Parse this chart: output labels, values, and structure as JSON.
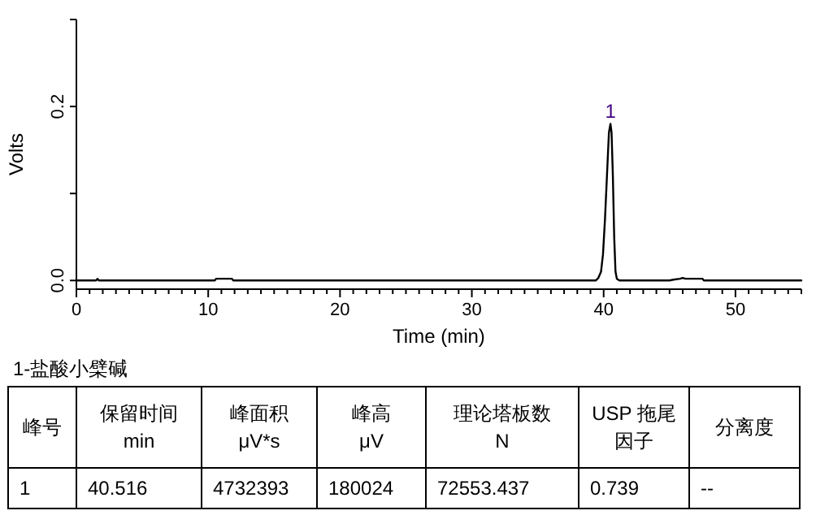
{
  "chart_data": {
    "type": "line",
    "xlabel": "Time (min)",
    "ylabel": "Volts",
    "xlim": [
      0,
      55
    ],
    "ylim": [
      -0.01,
      0.3
    ],
    "xticks": [
      0,
      {
        "value": 1,
        "label": null
      },
      {
        "value": 2,
        "label": null
      },
      {
        "value": 3,
        "label": null
      },
      {
        "value": 4,
        "label": null
      },
      {
        "value": 5,
        "label": null
      },
      {
        "value": 6,
        "label": null
      },
      {
        "value": 7,
        "label": null
      },
      {
        "value": 8,
        "label": null
      },
      {
        "value": 9,
        "label": null
      },
      10,
      {
        "value": 11,
        "label": null
      },
      {
        "value": 12,
        "label": null
      },
      {
        "value": 13,
        "label": null
      },
      {
        "value": 14,
        "label": null
      },
      {
        "value": 15,
        "label": null
      },
      {
        "value": 16,
        "label": null
      },
      {
        "value": 17,
        "label": null
      },
      {
        "value": 18,
        "label": null
      },
      {
        "value": 19,
        "label": null
      },
      20,
      {
        "value": 21,
        "label": null
      },
      {
        "value": 22,
        "label": null
      },
      {
        "value": 23,
        "label": null
      },
      {
        "value": 24,
        "label": null
      },
      {
        "value": 25,
        "label": null
      },
      {
        "value": 26,
        "label": null
      },
      {
        "value": 27,
        "label": null
      },
      {
        "value": 28,
        "label": null
      },
      {
        "value": 29,
        "label": null
      },
      30,
      {
        "value": 31,
        "label": null
      },
      {
        "value": 32,
        "label": null
      },
      {
        "value": 33,
        "label": null
      },
      {
        "value": 34,
        "label": null
      },
      {
        "value": 35,
        "label": null
      },
      {
        "value": 36,
        "label": null
      },
      {
        "value": 37,
        "label": null
      },
      {
        "value": 38,
        "label": null
      },
      {
        "value": 39,
        "label": null
      },
      40,
      {
        "value": 41,
        "label": null
      },
      {
        "value": 42,
        "label": null
      },
      {
        "value": 43,
        "label": null
      },
      {
        "value": 44,
        "label": null
      },
      {
        "value": 45,
        "label": null
      },
      {
        "value": 46,
        "label": null
      },
      {
        "value": 47,
        "label": null
      },
      {
        "value": 48,
        "label": null
      },
      {
        "value": 49,
        "label": null
      },
      50,
      {
        "value": 51,
        "label": null
      },
      {
        "value": 52,
        "label": null
      },
      {
        "value": 53,
        "label": null
      },
      {
        "value": 54,
        "label": null
      },
      {
        "value": 55,
        "label": null
      }
    ],
    "yticks": [
      {
        "value": 0,
        "label": "0.0"
      },
      {
        "value": 0.1,
        "label": null
      },
      {
        "value": 0.2,
        "label": "0.2"
      },
      {
        "value": 0.3,
        "label": null
      }
    ],
    "x": [
      0,
      1.5,
      1.6,
      1.7,
      10.5,
      10.6,
      11,
      11.8,
      11.9,
      39.4,
      39.6,
      39.8,
      39.95,
      40.1,
      40.25,
      40.4,
      40.516,
      40.6,
      40.7,
      40.8,
      40.9,
      41.0,
      41.2,
      45,
      45.3,
      45.8,
      46,
      46.2,
      47.5,
      47.6,
      55
    ],
    "series": [
      {
        "color": "#000000",
        "values": [
          0,
          0,
          0.002,
          0,
          0,
          0.002,
          0.002,
          0.002,
          0,
          0,
          0.003,
          0.01,
          0.03,
          0.07,
          0.12,
          0.17,
          0.18,
          0.17,
          0.12,
          0.05,
          0.01,
          0.002,
          0,
          0,
          0.001,
          0.002,
          0.003,
          0.002,
          0.002,
          0,
          0
        ]
      }
    ],
    "grid": false,
    "marker": "none",
    "line_style": "solid",
    "annotations": [
      {
        "text": "1",
        "x": 40.516,
        "y": 0.18
      },
      "1-盐酸小檗碱",
      "峰号",
      "保留时间\nmin",
      "峰面积\nμV*s",
      "峰高\nμV",
      "理论塔板数\nN",
      "USP 拖尾因子",
      "分离度",
      "1",
      "40.516",
      "4732393",
      "180024",
      "72553.437",
      "0.739",
      "--"
    ]
  }
}
